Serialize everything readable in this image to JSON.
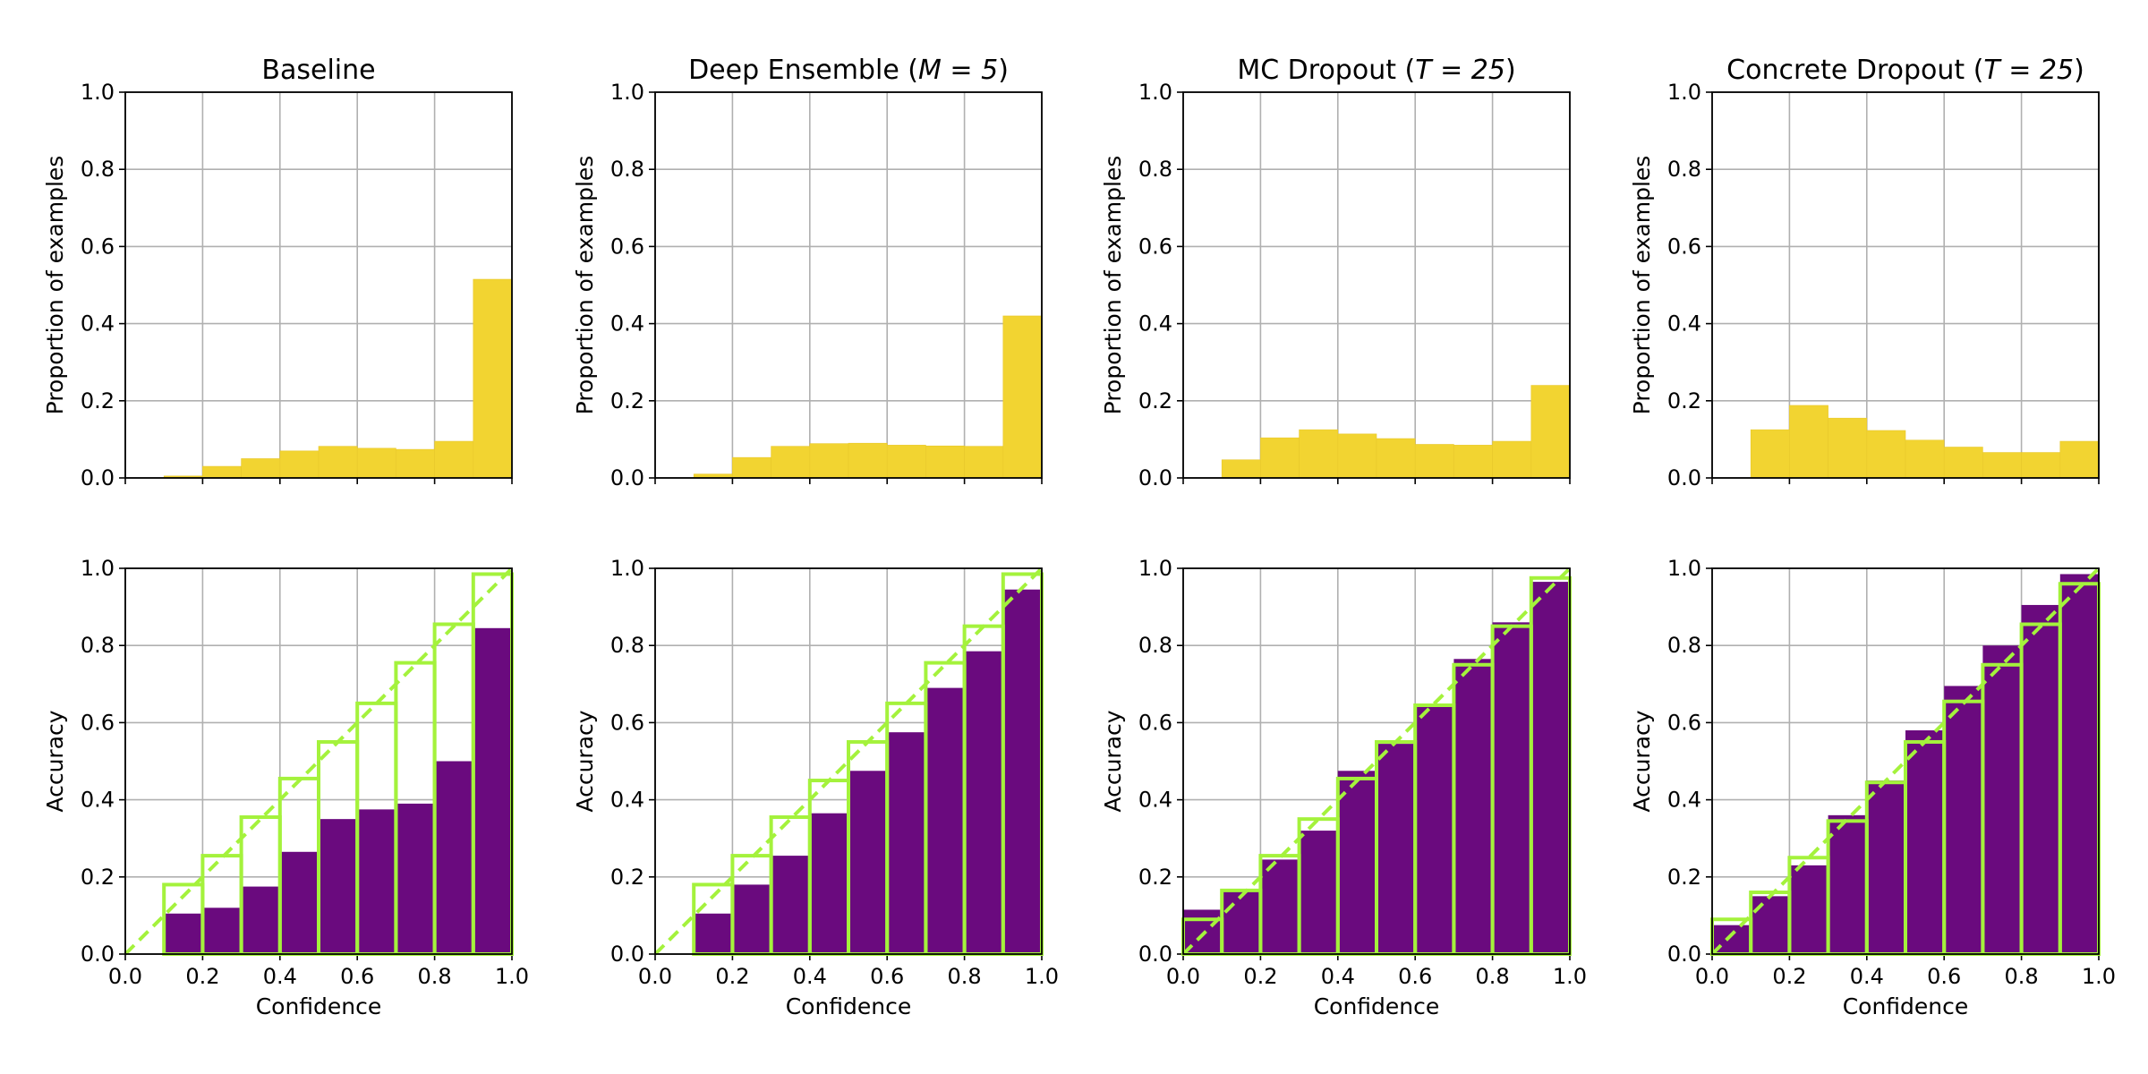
{
  "colors": {
    "confidence_bar": "#f2d431",
    "accuracy_bar": "#6a0a7e",
    "gap_outline": "#a4f23c",
    "diagonal": "#a4f23c",
    "grid": "#b0b0b0"
  },
  "chart_data": [
    {
      "type": "bar",
      "title": "Baseline",
      "title_math": "",
      "confidence_histogram": {
        "ylabel": "Proportion of examples",
        "bin_edges": [
          0.0,
          0.1,
          0.2,
          0.3,
          0.4,
          0.5,
          0.6,
          0.7,
          0.8,
          0.9,
          1.0
        ],
        "values": [
          0.0,
          0.005,
          0.03,
          0.05,
          0.07,
          0.082,
          0.077,
          0.074,
          0.095,
          0.515
        ],
        "xlim": [
          0,
          1
        ],
        "ylim": [
          0,
          1
        ],
        "yticks": [
          "0.0",
          "0.2",
          "0.4",
          "0.6",
          "0.8",
          "1.0"
        ]
      },
      "reliability_diagram": {
        "xlabel": "Confidence",
        "ylabel": "Accuracy",
        "bin_edges": [
          0.0,
          0.1,
          0.2,
          0.3,
          0.4,
          0.5,
          0.6,
          0.7,
          0.8,
          0.9,
          1.0
        ],
        "accuracy": [
          0.0,
          0.105,
          0.12,
          0.175,
          0.265,
          0.35,
          0.375,
          0.39,
          0.5,
          0.845
        ],
        "mean_confidence": [
          0.0,
          0.18,
          0.255,
          0.355,
          0.455,
          0.55,
          0.65,
          0.755,
          0.855,
          0.985
        ],
        "xlim": [
          0,
          1
        ],
        "ylim": [
          0,
          1
        ],
        "xticks": [
          "0.0",
          "0.2",
          "0.4",
          "0.6",
          "0.8",
          "1.0"
        ],
        "yticks": [
          "0.0",
          "0.2",
          "0.4",
          "0.6",
          "0.8",
          "1.0"
        ]
      }
    },
    {
      "type": "bar",
      "title": "Deep Ensemble (",
      "title_math": "M = 5",
      "confidence_histogram": {
        "ylabel": "Proportion of examples",
        "bin_edges": [
          0.0,
          0.1,
          0.2,
          0.3,
          0.4,
          0.5,
          0.6,
          0.7,
          0.8,
          0.9,
          1.0
        ],
        "values": [
          0.0,
          0.01,
          0.053,
          0.082,
          0.089,
          0.09,
          0.085,
          0.083,
          0.082,
          0.42
        ],
        "xlim": [
          0,
          1
        ],
        "ylim": [
          0,
          1
        ],
        "yticks": [
          "0.0",
          "0.2",
          "0.4",
          "0.6",
          "0.8",
          "1.0"
        ]
      },
      "reliability_diagram": {
        "xlabel": "Confidence",
        "ylabel": "Accuracy",
        "bin_edges": [
          0.0,
          0.1,
          0.2,
          0.3,
          0.4,
          0.5,
          0.6,
          0.7,
          0.8,
          0.9,
          1.0
        ],
        "accuracy": [
          0.0,
          0.105,
          0.18,
          0.255,
          0.365,
          0.475,
          0.575,
          0.69,
          0.785,
          0.945
        ],
        "mean_confidence": [
          0.0,
          0.18,
          0.255,
          0.355,
          0.45,
          0.55,
          0.65,
          0.755,
          0.85,
          0.985
        ],
        "xlim": [
          0,
          1
        ],
        "ylim": [
          0,
          1
        ],
        "xticks": [
          "0.0",
          "0.2",
          "0.4",
          "0.6",
          "0.8",
          "1.0"
        ],
        "yticks": [
          "0.0",
          "0.2",
          "0.4",
          "0.6",
          "0.8",
          "1.0"
        ]
      }
    },
    {
      "type": "bar",
      "title": "MC Dropout (",
      "title_math": "T = 25",
      "confidence_histogram": {
        "ylabel": "Proportion of examples",
        "bin_edges": [
          0.0,
          0.1,
          0.2,
          0.3,
          0.4,
          0.5,
          0.6,
          0.7,
          0.8,
          0.9,
          1.0
        ],
        "values": [
          0.0,
          0.047,
          0.104,
          0.125,
          0.114,
          0.102,
          0.087,
          0.085,
          0.095,
          0.24
        ],
        "xlim": [
          0,
          1
        ],
        "ylim": [
          0,
          1
        ],
        "yticks": [
          "0.0",
          "0.2",
          "0.4",
          "0.6",
          "0.8",
          "1.0"
        ]
      },
      "reliability_diagram": {
        "xlabel": "Confidence",
        "ylabel": "Accuracy",
        "bin_edges": [
          0.0,
          0.1,
          0.2,
          0.3,
          0.4,
          0.5,
          0.6,
          0.7,
          0.8,
          0.9,
          1.0
        ],
        "accuracy": [
          0.115,
          0.165,
          0.245,
          0.32,
          0.475,
          0.545,
          0.645,
          0.765,
          0.86,
          0.965
        ],
        "mean_confidence": [
          0.09,
          0.165,
          0.255,
          0.35,
          0.455,
          0.55,
          0.645,
          0.75,
          0.85,
          0.975
        ],
        "xlim": [
          0,
          1
        ],
        "ylim": [
          0,
          1
        ],
        "xticks": [
          "0.0",
          "0.2",
          "0.4",
          "0.6",
          "0.8",
          "1.0"
        ],
        "yticks": [
          "0.0",
          "0.2",
          "0.4",
          "0.6",
          "0.8",
          "1.0"
        ]
      }
    },
    {
      "type": "bar",
      "title": "Concrete Dropout (",
      "title_math": "T = 25",
      "confidence_histogram": {
        "ylabel": "Proportion of examples",
        "bin_edges": [
          0.0,
          0.1,
          0.2,
          0.3,
          0.4,
          0.5,
          0.6,
          0.7,
          0.8,
          0.9,
          1.0
        ],
        "values": [
          0.0,
          0.125,
          0.188,
          0.155,
          0.123,
          0.098,
          0.08,
          0.066,
          0.066,
          0.095
        ],
        "xlim": [
          0,
          1
        ],
        "ylim": [
          0,
          1
        ],
        "yticks": [
          "0.0",
          "0.2",
          "0.4",
          "0.6",
          "0.8",
          "1.0"
        ]
      },
      "reliability_diagram": {
        "xlabel": "Confidence",
        "ylabel": "Accuracy",
        "bin_edges": [
          0.0,
          0.1,
          0.2,
          0.3,
          0.4,
          0.5,
          0.6,
          0.7,
          0.8,
          0.9,
          1.0
        ],
        "accuracy": [
          0.075,
          0.15,
          0.23,
          0.36,
          0.45,
          0.58,
          0.695,
          0.8,
          0.905,
          0.985
        ],
        "mean_confidence": [
          0.09,
          0.16,
          0.25,
          0.345,
          0.445,
          0.55,
          0.655,
          0.75,
          0.855,
          0.96
        ],
        "xlim": [
          0,
          1
        ],
        "ylim": [
          0,
          1
        ],
        "xticks": [
          "0.0",
          "0.2",
          "0.4",
          "0.6",
          "0.8",
          "1.0"
        ],
        "yticks": [
          "0.0",
          "0.2",
          "0.4",
          "0.6",
          "0.8",
          "1.0"
        ]
      }
    }
  ]
}
